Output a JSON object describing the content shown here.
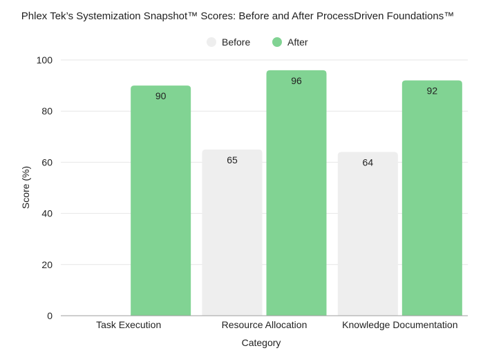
{
  "chart_data": {
    "type": "bar",
    "title": "Phlex Tek’s Systemization Snapshot™ Scores:  Before and After ProcessDriven Foundations™",
    "xlabel": "Category",
    "ylabel": "Score (%)",
    "categories": [
      "Task Execution",
      "Resource Allocation",
      "Knowledge Documentation"
    ],
    "series": [
      {
        "name": "Before",
        "values": [
          0,
          65,
          64
        ],
        "labels": [
          "",
          "65",
          "64"
        ],
        "color": "#eeeeee"
      },
      {
        "name": "After",
        "values": [
          90,
          96,
          92
        ],
        "labels": [
          "90",
          "96",
          "92"
        ],
        "color": "#81d393"
      }
    ],
    "ylim": [
      0,
      100
    ],
    "yticks": [
      "0",
      "20",
      "40",
      "60",
      "80",
      "100"
    ],
    "grid": true,
    "legend_position": "top-center"
  }
}
